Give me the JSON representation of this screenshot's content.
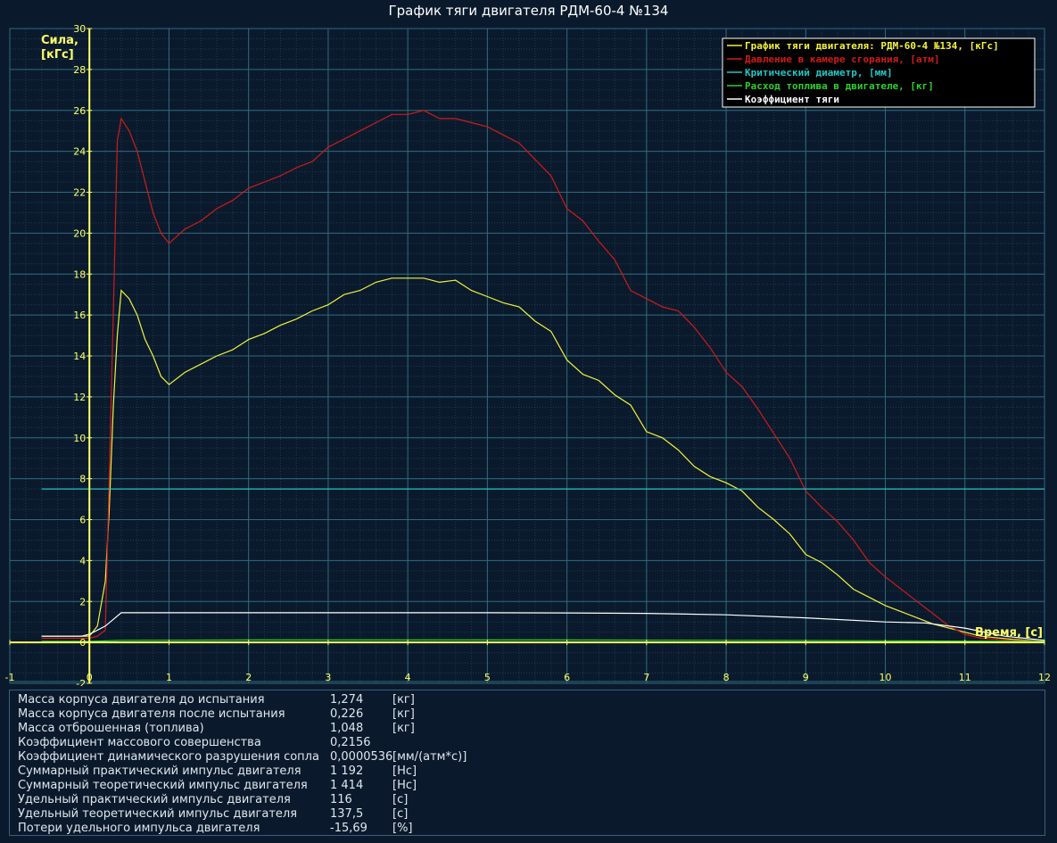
{
  "title": "График тяги двигателя РДМ-60-4 №134",
  "colors": {
    "background": "#0a1a2c",
    "grid_major": "#2f6a7e",
    "grid_minor": "#1b3c52",
    "axis": "#ffff66",
    "thrust": "#f2f23c",
    "pressure": "#d01a1a",
    "critical_diameter": "#1fc7c7",
    "fuel_flow": "#2bd12b",
    "thrust_coefficient": "#ffffff"
  },
  "chart_data": {
    "type": "line",
    "title": "График тяги двигателя РДМ-60-4 №134",
    "ylabel": "Сила, [кГс]",
    "xlabel": "Время, [с]",
    "xlim": [
      -1,
      12
    ],
    "ylim": [
      -2,
      30
    ],
    "x_ticks": [
      "-1",
      "0",
      "1",
      "2",
      "3",
      "4",
      "5",
      "6",
      "7",
      "8",
      "9",
      "10",
      "11",
      "12"
    ],
    "y_ticks": [
      "-2",
      "0",
      "2",
      "4",
      "6",
      "8",
      "10",
      "12",
      "14",
      "16",
      "18",
      "20",
      "22",
      "24",
      "26",
      "28",
      "30"
    ],
    "grid": true,
    "legend_position": "top-right",
    "legend": [
      "График тяги двигателя: РДМ-60-4 №134, [кГс]",
      "Давление в камере сгорания, [атм]",
      "Критический диаметр, [мм]",
      "Расход топлива в двигателе, [кг]",
      "Коэффициент тяги"
    ],
    "series": [
      {
        "name": "График тяги двигателя: РДМ-60-4 №134, [кГс]",
        "color": "#f2f23c",
        "x": [
          -0.6,
          0.0,
          0.1,
          0.2,
          0.25,
          0.3,
          0.35,
          0.4,
          0.5,
          0.6,
          0.7,
          0.8,
          0.9,
          1.0,
          1.2,
          1.4,
          1.6,
          1.8,
          2.0,
          2.2,
          2.4,
          2.6,
          2.8,
          3.0,
          3.2,
          3.4,
          3.6,
          3.8,
          4.0,
          4.2,
          4.4,
          4.6,
          4.8,
          5.0,
          5.2,
          5.4,
          5.6,
          5.8,
          6.0,
          6.2,
          6.4,
          6.6,
          6.8,
          7.0,
          7.2,
          7.4,
          7.6,
          7.8,
          8.0,
          8.2,
          8.4,
          8.6,
          8.8,
          9.0,
          9.2,
          9.4,
          9.6,
          9.8,
          10.0,
          10.2,
          10.4,
          10.6,
          10.8,
          11.0,
          11.2,
          11.6,
          12.0
        ],
        "y": [
          0.3,
          0.3,
          0.8,
          3.0,
          6.5,
          11.5,
          15.0,
          17.2,
          16.8,
          16.0,
          14.8,
          14.0,
          13.0,
          12.6,
          13.2,
          13.6,
          14.0,
          14.3,
          14.8,
          15.1,
          15.5,
          15.8,
          16.2,
          16.5,
          17.0,
          17.2,
          17.6,
          17.8,
          17.8,
          17.8,
          17.6,
          17.7,
          17.2,
          16.9,
          16.6,
          16.4,
          15.7,
          15.2,
          13.8,
          13.1,
          12.8,
          12.1,
          11.6,
          10.3,
          10.0,
          9.4,
          8.6,
          8.1,
          7.8,
          7.4,
          6.6,
          6.0,
          5.3,
          4.3,
          3.9,
          3.3,
          2.6,
          2.2,
          1.8,
          1.5,
          1.2,
          0.9,
          0.7,
          0.5,
          0.3,
          0.15,
          0.05
        ]
      },
      {
        "name": "Давление в камере сгорания, [атм]",
        "color": "#d01a1a",
        "x": [
          -0.6,
          0.0,
          0.1,
          0.2,
          0.3,
          0.35,
          0.4,
          0.5,
          0.6,
          0.7,
          0.8,
          0.9,
          1.0,
          1.2,
          1.4,
          1.6,
          1.8,
          2.0,
          2.2,
          2.4,
          2.6,
          2.8,
          3.0,
          3.2,
          3.4,
          3.6,
          3.8,
          4.0,
          4.2,
          4.4,
          4.6,
          4.8,
          5.0,
          5.2,
          5.4,
          5.6,
          5.8,
          6.0,
          6.2,
          6.4,
          6.6,
          6.8,
          7.0,
          7.2,
          7.4,
          7.6,
          7.8,
          8.0,
          8.2,
          8.4,
          8.6,
          8.8,
          9.0,
          9.2,
          9.4,
          9.6,
          9.8,
          10.0,
          10.2,
          10.4,
          10.6,
          10.8,
          11.0,
          11.2,
          11.6,
          12.0
        ],
        "y": [
          0.2,
          0.2,
          0.3,
          0.6,
          16.0,
          24.5,
          25.6,
          25.0,
          24.0,
          22.5,
          21.0,
          20.0,
          19.5,
          20.2,
          20.6,
          21.2,
          21.6,
          22.2,
          22.5,
          22.8,
          23.2,
          23.5,
          24.2,
          24.6,
          25.0,
          25.4,
          25.8,
          25.8,
          26.0,
          25.6,
          25.6,
          25.4,
          25.2,
          24.8,
          24.4,
          23.6,
          22.8,
          21.2,
          20.6,
          19.6,
          18.7,
          17.2,
          16.8,
          16.4,
          16.2,
          15.4,
          14.4,
          13.2,
          12.5,
          11.4,
          10.2,
          9.0,
          7.4,
          6.6,
          5.9,
          5.0,
          3.9,
          3.2,
          2.6,
          2.0,
          1.4,
          0.8,
          0.4,
          0.2,
          0.1,
          0.05
        ]
      },
      {
        "name": "Критический диаметр, [мм]",
        "color": "#1fc7c7",
        "x": [
          -0.6,
          12.0
        ],
        "y": [
          7.5,
          7.5
        ]
      },
      {
        "name": "Расход топлива в двигателе, [кг]",
        "color": "#2bd12b",
        "x": [
          -0.6,
          0.0,
          0.4,
          2.0,
          4.0,
          6.0,
          8.0,
          10.0,
          11.0,
          12.0
        ],
        "y": [
          0.05,
          0.05,
          0.1,
          0.12,
          0.12,
          0.12,
          0.1,
          0.08,
          0.06,
          0.05
        ]
      },
      {
        "name": "Коэффициент тяги",
        "color": "#ffffff",
        "x": [
          -0.6,
          -0.1,
          0.0,
          0.2,
          0.4,
          1.0,
          2.0,
          3.0,
          4.0,
          5.0,
          6.0,
          7.0,
          8.0,
          9.0,
          10.0,
          10.5,
          11.0,
          11.5,
          12.0
        ],
        "y": [
          0.3,
          0.3,
          0.4,
          0.8,
          1.45,
          1.45,
          1.45,
          1.45,
          1.45,
          1.45,
          1.44,
          1.42,
          1.35,
          1.2,
          1.0,
          0.95,
          0.7,
          0.3,
          0.1
        ]
      }
    ]
  },
  "summary": {
    "rows": [
      {
        "label": "Масса корпуса двигателя до испытания",
        "value": "1,274",
        "unit": "[кг]"
      },
      {
        "label": "Масса корпуса двигателя после испытания",
        "value": "0,226",
        "unit": "[кг]"
      },
      {
        "label": "Масса отброшенная (топлива)",
        "value": "1,048",
        "unit": "[кг]"
      },
      {
        "label": "Коэффициент массового совершенства",
        "value": "0,2156",
        "unit": ""
      },
      {
        "label": "Коэффициент динамического разрушения сопла",
        "value": "0,0000536",
        "unit": "[мм/(атм*с)]"
      },
      {
        "label": "Суммарный практический импульс двигателя",
        "value": "1 192",
        "unit": "[Нс]"
      },
      {
        "label": "Суммарный теоретический импульс двигателя",
        "value": "1 414",
        "unit": "[Нс]"
      },
      {
        "label": "Удельный практический импульс двигателя",
        "value": "116",
        "unit": "[с]"
      },
      {
        "label": "Удельный теоретический импульс двигателя",
        "value": "137,5",
        "unit": "[с]"
      },
      {
        "label": "Потери удельного импульса двигателя",
        "value": "-15,69",
        "unit": "[%]"
      }
    ]
  }
}
